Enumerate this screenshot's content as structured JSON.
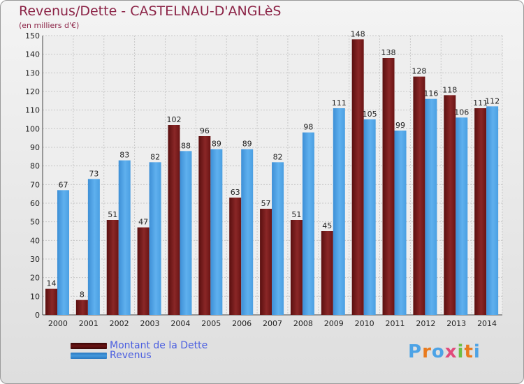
{
  "title": "Revenus/Dette - CASTELNAU-D'ANGLèS",
  "subtitle": "(en milliers d'€)",
  "colors": {
    "dette": "#7b1a1a",
    "revenus": "#4da3e6",
    "axis_text": "#222222",
    "title": "#8b2346",
    "legend_text": "#4a5ee0"
  },
  "legend": [
    {
      "label": "Montant de la Dette",
      "color": "#6b1414"
    },
    {
      "label": "Revenus",
      "color": "#4499dd"
    }
  ],
  "logo": {
    "text": "Proxiti",
    "colors": [
      "#4da3e6",
      "#e97b1e",
      "#4da3e6",
      "#e14b7b",
      "#6dbe45",
      "#e97b1e",
      "#4da3e6"
    ]
  },
  "chart_data": {
    "type": "bar",
    "categories": [
      "2000",
      "2001",
      "2002",
      "2003",
      "2004",
      "2005",
      "2006",
      "2007",
      "2008",
      "2009",
      "2010",
      "2011",
      "2012",
      "2013",
      "2014"
    ],
    "series": [
      {
        "name": "Montant de la Dette",
        "values": [
          14,
          8,
          51,
          47,
          102,
          96,
          63,
          57,
          51,
          45,
          148,
          138,
          128,
          118,
          111
        ]
      },
      {
        "name": "Revenus",
        "values": [
          67,
          73,
          83,
          82,
          88,
          89,
          89,
          82,
          98,
          111,
          105,
          99,
          116,
          106,
          112
        ]
      }
    ],
    "ylim": [
      0,
      150
    ],
    "yticks": [
      0,
      10,
      20,
      30,
      40,
      50,
      60,
      70,
      80,
      90,
      100,
      110,
      120,
      130,
      140,
      150
    ],
    "grid": true,
    "legend_position": "bottom-left"
  }
}
